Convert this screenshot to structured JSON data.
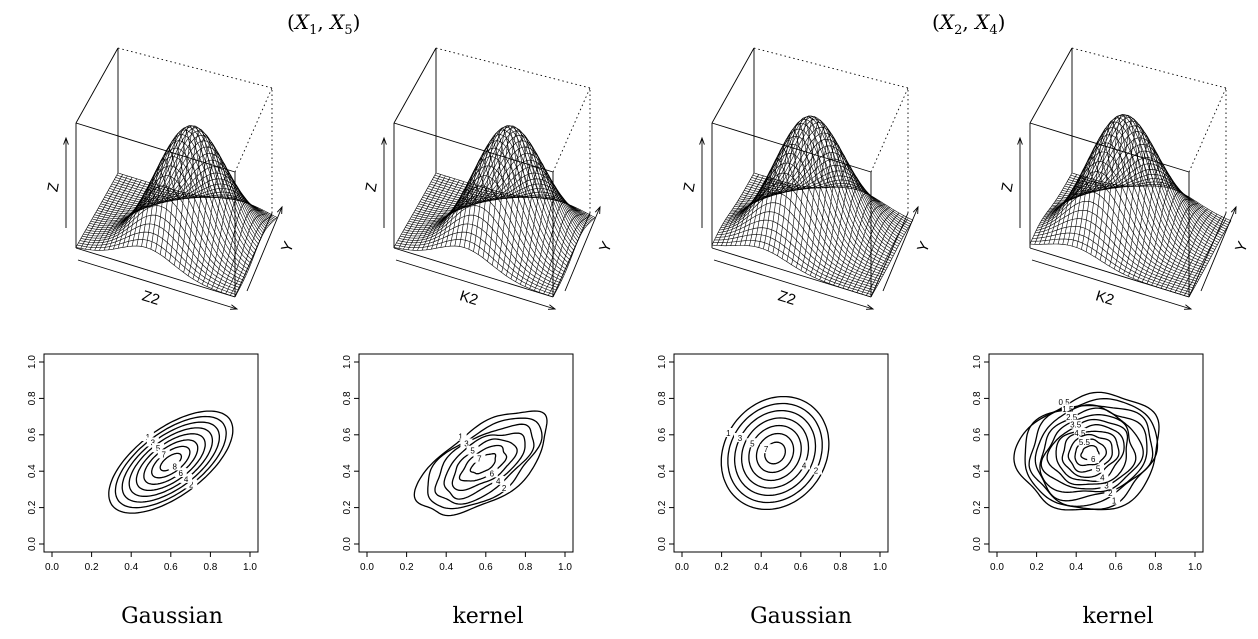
{
  "groups": [
    {
      "title_var1": "X",
      "title_sub1": "1",
      "title_var2": "X",
      "title_sub2": "5"
    },
    {
      "title_var1": "X",
      "title_sub1": "2",
      "title_var2": "X",
      "title_sub2": "4"
    }
  ],
  "captions": [
    "Gaussian",
    "kernel",
    "Gaussian",
    "kernel"
  ],
  "chart_data": [
    {
      "type": "surface",
      "title": "",
      "xlabel": "Z2",
      "ylabel": "Y",
      "zlabel": "Z",
      "peak_x": 0.6,
      "peak_y": 0.45
    },
    {
      "type": "surface",
      "title": "",
      "xlabel": "K2",
      "ylabel": "Y",
      "zlabel": "Z",
      "peak_x": 0.6,
      "peak_y": 0.45
    },
    {
      "type": "surface",
      "title": "",
      "xlabel": "Z2",
      "ylabel": "Y",
      "zlabel": "Z",
      "peak_x": 0.48,
      "peak_y": 0.5
    },
    {
      "type": "surface",
      "title": "",
      "xlabel": "K2",
      "ylabel": "Y",
      "zlabel": "Z",
      "peak_x": 0.45,
      "peak_y": 0.5
    },
    {
      "type": "contour",
      "caption": "Gaussian",
      "xlim": [
        0,
        1
      ],
      "ylim": [
        0,
        1
      ],
      "xticks": [
        "0.0",
        "0.2",
        "0.4",
        "0.6",
        "0.8",
        "1.0"
      ],
      "yticks": [
        "0.0",
        "0.2",
        "0.4",
        "0.6",
        "0.8",
        "1.0"
      ],
      "center": [
        0.6,
        0.45
      ],
      "angle_deg": 40,
      "max_semi_major": 0.38,
      "max_semi_minor": 0.18,
      "levels": [
        "1",
        "2",
        "3",
        "4",
        "5",
        "6",
        "7",
        "8"
      ],
      "labeled_levels": [
        "1",
        "2",
        "3",
        "4",
        "5",
        "6",
        "7",
        "8"
      ]
    },
    {
      "type": "contour",
      "caption": "kernel",
      "xlim": [
        0,
        1
      ],
      "ylim": [
        0,
        1
      ],
      "xticks": [
        "0.0",
        "0.2",
        "0.4",
        "0.6",
        "0.8",
        "1.0"
      ],
      "yticks": [
        "0.0",
        "0.2",
        "0.4",
        "0.6",
        "0.8",
        "1.0"
      ],
      "center": [
        0.59,
        0.44
      ],
      "angle_deg": 38,
      "max_semi_major": 0.39,
      "max_semi_minor": 0.19,
      "levels": [
        "1",
        "2",
        "3",
        "4",
        "5",
        "6",
        "7"
      ],
      "labeled_levels": [
        "1",
        "2",
        "3",
        "4",
        "5",
        "6",
        "7"
      ]
    },
    {
      "type": "contour",
      "caption": "Gaussian",
      "xlim": [
        0,
        1
      ],
      "ylim": [
        0,
        1
      ],
      "xticks": [
        "0.0",
        "0.2",
        "0.4",
        "0.6",
        "0.8",
        "1.0"
      ],
      "yticks": [
        "0.0",
        "0.2",
        "0.4",
        "0.6",
        "0.8",
        "1.0"
      ],
      "center": [
        0.47,
        0.5
      ],
      "angle_deg": 65,
      "max_semi_major": 0.32,
      "max_semi_minor": 0.26,
      "levels": [
        "1",
        "2",
        "3",
        "4",
        "5",
        "6",
        "7"
      ],
      "labeled_levels": [
        "1",
        "2",
        "3",
        "4",
        "5",
        "7"
      ]
    },
    {
      "type": "contour",
      "caption": "kernel",
      "xlim": [
        0,
        1
      ],
      "ylim": [
        0,
        1
      ],
      "xticks": [
        "0.0",
        "0.2",
        "0.4",
        "0.6",
        "0.8",
        "1.0"
      ],
      "yticks": [
        "0.0",
        "0.2",
        "0.4",
        "0.6",
        "0.8",
        "1.0"
      ],
      "center": [
        0.47,
        0.5
      ],
      "angle_deg": 25,
      "max_semi_major": 0.37,
      "max_semi_minor": 0.31,
      "levels": [
        "0.5",
        "1",
        "1.5",
        "2",
        "2.5",
        "3",
        "3.5",
        "4",
        "4.5",
        "5",
        "5.5",
        "6"
      ],
      "labeled_levels": [
        "0.5",
        "1",
        "1.5",
        "2",
        "2.5",
        "3",
        "3.5",
        "4",
        "4.5",
        "5",
        "5.5",
        "6"
      ]
    }
  ]
}
